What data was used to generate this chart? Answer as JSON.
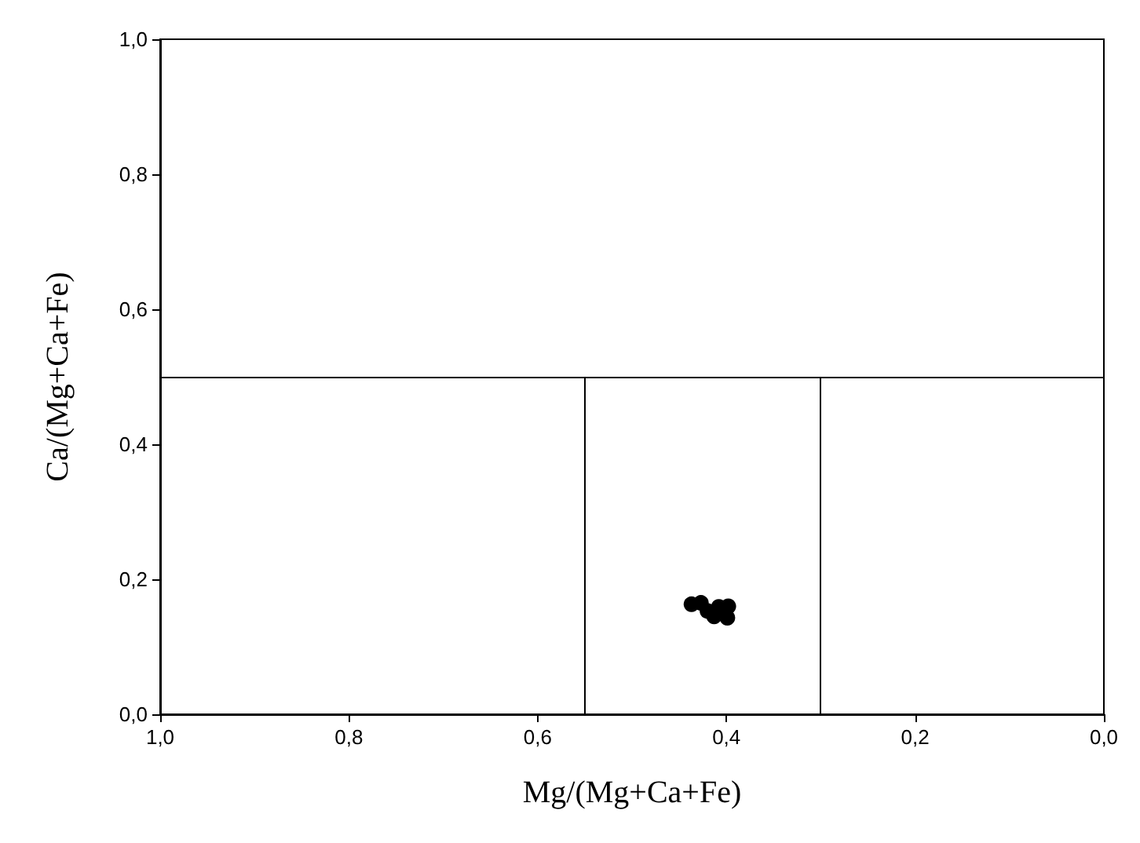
{
  "chart_data": {
    "type": "scatter",
    "xlabel": "Mg/(Mg+Ca+Fe)",
    "ylabel": "Ca/(Mg+Ca+Fe)",
    "x": [
      0.437,
      0.427,
      0.42,
      0.413,
      0.408,
      0.399,
      0.398
    ],
    "values": [
      0.163,
      0.165,
      0.153,
      0.145,
      0.159,
      0.143,
      0.16
    ],
    "color": "#000000",
    "marker": "circle",
    "xlim": [
      1,
      0
    ],
    "xticks": [
      {
        "value": 1,
        "label": "1,0"
      },
      {
        "value": 0.8,
        "label": "0,8"
      },
      {
        "value": 0.6,
        "label": "0,6"
      },
      {
        "value": 0.4,
        "label": "0,4"
      },
      {
        "value": 0.2,
        "label": "0,2"
      },
      {
        "value": 0,
        "label": "0,0"
      }
    ],
    "ylim": [
      0,
      1
    ],
    "yticks": [
      {
        "value": 0,
        "label": "0,0"
      },
      {
        "value": 0.2,
        "label": "0,2"
      },
      {
        "value": 0.4,
        "label": "0,4"
      },
      {
        "value": 0.6,
        "label": "0,6"
      },
      {
        "value": 0.8,
        "label": "0,8"
      },
      {
        "value": 1,
        "label": "1,0"
      }
    ],
    "ref_lines": [
      {
        "axis": "y",
        "value": 0.5,
        "color": "#000000"
      },
      {
        "axis": "x",
        "value": 0.55,
        "color": "#000000"
      },
      {
        "axis": "x",
        "value": 0.3,
        "color": "#000000"
      }
    ],
    "grid": false
  }
}
